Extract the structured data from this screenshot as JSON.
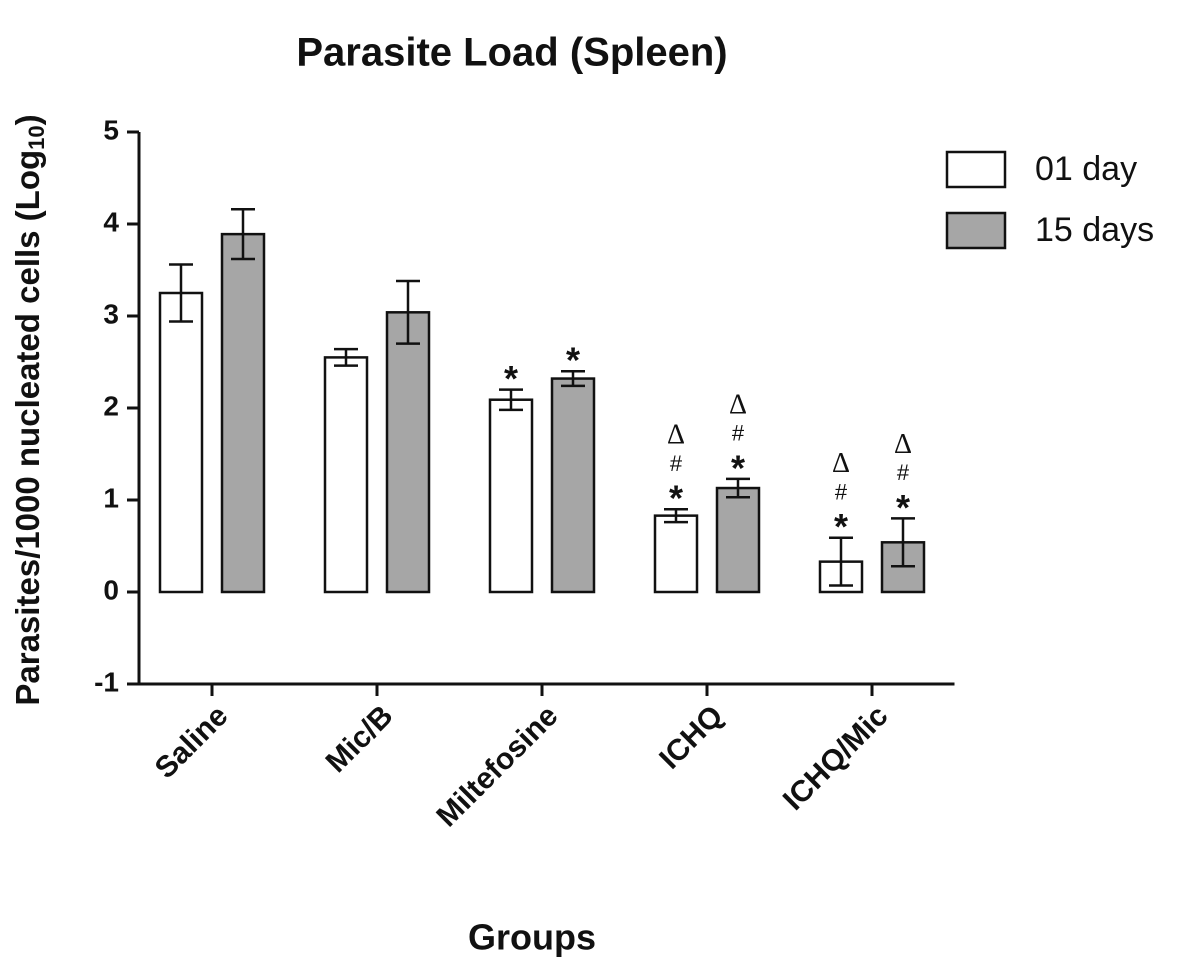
{
  "chart_data": {
    "type": "bar",
    "title": "Parasite Load (Spleen)",
    "x_label": "Groups",
    "y_label": [
      "Parasites/1000 nucleated cells (Log",
      "10",
      ")"
    ],
    "categories": [
      "Saline",
      "Mic/B",
      "Miltefosine",
      "ICHQ",
      "ICHQ/Mic"
    ],
    "series": [
      {
        "name": "01 day",
        "color": "#ffffff",
        "values": [
          3.25,
          2.55,
          2.09,
          0.83,
          0.33
        ],
        "errors": [
          0.31,
          0.09,
          0.11,
          0.07,
          0.26
        ],
        "annotations": [
          [],
          [],
          [
            "*"
          ],
          [
            "*",
            "#",
            "Δ"
          ],
          [
            "*",
            "#",
            "Δ"
          ]
        ]
      },
      {
        "name": "15 days",
        "color": "#a6a6a6",
        "values": [
          3.89,
          3.04,
          2.32,
          1.13,
          0.54
        ],
        "errors": [
          0.27,
          0.34,
          0.08,
          0.1,
          0.26
        ],
        "annotations": [
          [],
          [],
          [
            "*"
          ],
          [
            "*",
            "#",
            "Δ"
          ],
          [
            "*",
            "#",
            "Δ"
          ]
        ]
      }
    ],
    "ylim": [
      -1,
      5
    ],
    "yticks": [
      -1,
      0,
      1,
      2,
      3,
      4,
      5
    ],
    "legend": "upper right"
  }
}
